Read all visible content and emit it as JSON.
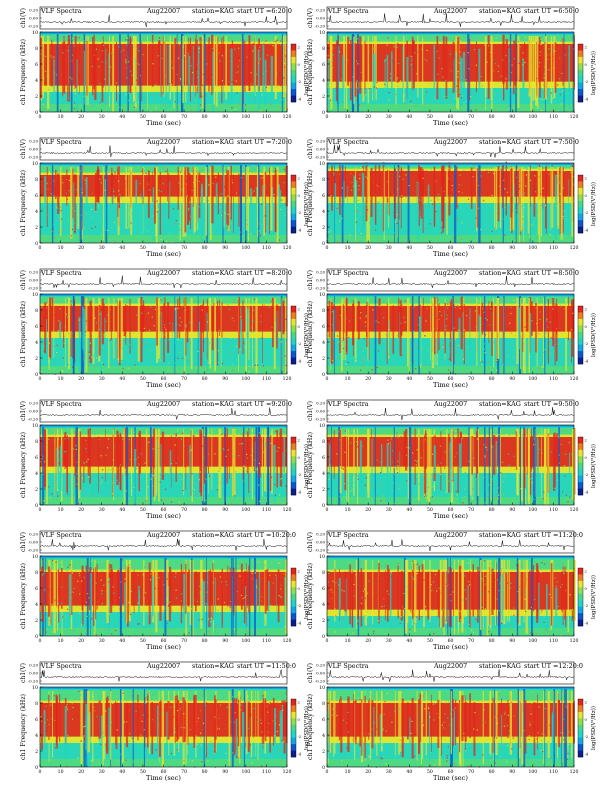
{
  "page": {
    "ts_ylabel": "ch1(V)",
    "spec_ylabel": "ch1 Frequency (kHz)",
    "xlabel": "Time (sec)",
    "colorbar_label": "log(PSD(V²/Hz))"
  },
  "colorscale": [
    "#0b1f8f",
    "#0a58d0",
    "#11a7e6",
    "#1ed6c4",
    "#46d98a",
    "#8fdf4a",
    "#e7e52e",
    "#f07d1c",
    "#e2261c"
  ],
  "chart_data": [
    {
      "type": "heatmap",
      "title_left": "VLF Spectra",
      "date": "Aug22007",
      "station": "station=KAG",
      "start": "start UT =6:20:0",
      "ts_ticks": [
        "0.20",
        "0.00",
        "-0.20"
      ],
      "ts_ylim": [
        -0.2,
        0.2
      ],
      "x_ticks": [
        0,
        10,
        20,
        30,
        40,
        50,
        60,
        70,
        80,
        90,
        100,
        110,
        120
      ],
      "xlim": [
        0,
        120
      ],
      "y_ticks": [
        0,
        2,
        4,
        6,
        8,
        10
      ],
      "ylim": [
        0,
        10
      ],
      "cb_ticks": [
        "2",
        "0",
        "-2",
        "-4"
      ],
      "xlabel": "Time (sec)",
      "ylabel": "ch1 Frequency (kHz)",
      "zlabel": "log(PSD(V²/Hz))",
      "band_low": 2.5,
      "band_high": 8.5,
      "intensity": 0.55
    },
    {
      "type": "heatmap",
      "title_left": "VLF Spectra",
      "date": "Aug22007",
      "station": "station=KAG",
      "start": "start UT =6:50:0",
      "ts_ticks": [
        "0.20",
        "0.00",
        "-0.20"
      ],
      "ts_ylim": [
        -0.2,
        0.2
      ],
      "x_ticks": [
        0,
        10,
        20,
        30,
        40,
        50,
        60,
        70,
        80,
        90,
        100,
        110,
        120
      ],
      "xlim": [
        0,
        120
      ],
      "y_ticks": [
        0,
        2,
        4,
        6,
        8,
        10
      ],
      "ylim": [
        0,
        10
      ],
      "cb_ticks": [
        "2",
        "0",
        "-2",
        "-4"
      ],
      "xlabel": "Time (sec)",
      "ylabel": "ch1 Frequency (kHz)",
      "zlabel": "log(PSD(V²/Hz))",
      "band_low": 3.0,
      "band_high": 8.5,
      "intensity": 0.5
    },
    {
      "type": "heatmap",
      "title_left": "VLF Spectra",
      "date": "Aug22007",
      "station": "station=KAG",
      "start": "start UT =7:20:0",
      "ts_ticks": [
        "0.20",
        "0.00",
        "-0.20"
      ],
      "ts_ylim": [
        -0.2,
        0.2
      ],
      "x_ticks": [
        0,
        10,
        20,
        30,
        40,
        50,
        60,
        70,
        80,
        90,
        100,
        110,
        120
      ],
      "xlim": [
        0,
        120
      ],
      "y_ticks": [
        0,
        2,
        4,
        6,
        8,
        10
      ],
      "ylim": [
        0,
        10
      ],
      "cb_ticks": [
        "2",
        "0",
        "-2",
        "-4"
      ],
      "xlabel": "Time (sec)",
      "ylabel": "ch1 Frequency (kHz)",
      "zlabel": "log(PSD(V²/Hz))",
      "band_low": 5.0,
      "band_high": 8.5,
      "intensity": 0.55
    },
    {
      "type": "heatmap",
      "title_left": "VLF Spectra",
      "date": "Aug22007",
      "station": "station=KAG",
      "start": "start UT =7:50:0",
      "ts_ticks": [
        "0.20",
        "0.00",
        "-0.20"
      ],
      "ts_ylim": [
        -0.2,
        0.2
      ],
      "x_ticks": [
        0,
        10,
        20,
        30,
        40,
        50,
        60,
        70,
        80,
        90,
        100,
        110,
        120
      ],
      "xlim": [
        0,
        120
      ],
      "y_ticks": [
        0,
        2,
        4,
        6,
        8,
        10
      ],
      "ylim": [
        0,
        10
      ],
      "cb_ticks": [
        "2",
        "0",
        "-2",
        "-4"
      ],
      "xlabel": "Time (sec)",
      "ylabel": "ch1 Frequency (kHz)",
      "zlabel": "log(PSD(V²/Hz))",
      "band_low": 5.0,
      "band_high": 9.0,
      "intensity": 0.7
    },
    {
      "type": "heatmap",
      "title_left": "VLF Spectra",
      "date": "Aug22007",
      "station": "station=KAG",
      "start": "start UT =8:20:0",
      "ts_ticks": [
        "0.20",
        "0.00",
        "-0.20"
      ],
      "ts_ylim": [
        -0.2,
        0.2
      ],
      "x_ticks": [
        0,
        10,
        20,
        30,
        40,
        50,
        60,
        70,
        80,
        90,
        100,
        110,
        120
      ],
      "xlim": [
        0,
        120
      ],
      "y_ticks": [
        0,
        2,
        4,
        6,
        8,
        10
      ],
      "ylim": [
        0,
        10
      ],
      "cb_ticks": [
        "2",
        "0",
        "-2",
        "-4"
      ],
      "xlabel": "Time (sec)",
      "ylabel": "ch1 Frequency (kHz)",
      "zlabel": "log(PSD(V²/Hz))",
      "band_low": 4.5,
      "band_high": 8.5,
      "intensity": 0.7
    },
    {
      "type": "heatmap",
      "title_left": "VLF Spectra",
      "date": "Aug22007",
      "station": "station=KAG",
      "start": "start UT =8:50:0",
      "ts_ticks": [
        "0.20",
        "0.00",
        "-0.20"
      ],
      "ts_ylim": [
        -0.2,
        0.2
      ],
      "x_ticks": [
        0,
        10,
        20,
        30,
        40,
        50,
        60,
        70,
        80,
        90,
        100,
        110,
        120
      ],
      "xlim": [
        0,
        120
      ],
      "y_ticks": [
        0,
        2,
        4,
        6,
        8,
        10
      ],
      "ylim": [
        0,
        10
      ],
      "cb_ticks": [
        "2",
        "0",
        "-2",
        "-4"
      ],
      "xlabel": "Time (sec)",
      "ylabel": "ch1 Frequency (kHz)",
      "zlabel": "log(PSD(V²/Hz))",
      "band_low": 4.5,
      "band_high": 8.5,
      "intensity": 0.7
    },
    {
      "type": "heatmap",
      "title_left": "VLF Spectra",
      "date": "Aug22007",
      "station": "station=KAG",
      "start": "start UT =9:20:0",
      "ts_ticks": [
        "0.20",
        "0.00",
        "-0.20"
      ],
      "ts_ylim": [
        -0.2,
        0.2
      ],
      "x_ticks": [
        0,
        10,
        20,
        30,
        40,
        50,
        60,
        70,
        80,
        90,
        100,
        110,
        120
      ],
      "xlim": [
        0,
        120
      ],
      "y_ticks": [
        0,
        2,
        4,
        6,
        8,
        10
      ],
      "ylim": [
        0,
        10
      ],
      "cb_ticks": [
        "2",
        "0",
        "-2",
        "-4"
      ],
      "xlabel": "Time (sec)",
      "ylabel": "ch1 Frequency (kHz)",
      "zlabel": "log(PSD(V²/Hz))",
      "band_low": 4.0,
      "band_high": 8.5,
      "intensity": 0.8
    },
    {
      "type": "heatmap",
      "title_left": "VLF Spectra",
      "date": "Aug22007",
      "station": "station=KAG",
      "start": "start UT =9:50:0",
      "ts_ticks": [
        "0.20",
        "0.00",
        "-0.20"
      ],
      "ts_ylim": [
        -0.2,
        0.2
      ],
      "x_ticks": [
        0,
        10,
        20,
        30,
        40,
        50,
        60,
        70,
        80,
        90,
        100,
        110,
        120
      ],
      "xlim": [
        0,
        120
      ],
      "y_ticks": [
        0,
        2,
        4,
        6,
        8,
        10
      ],
      "ylim": [
        0,
        10
      ],
      "cb_ticks": [
        "2",
        "0",
        "-2",
        "-4"
      ],
      "xlabel": "Time (sec)",
      "ylabel": "ch1 Frequency (kHz)",
      "zlabel": "log(PSD(V²/Hz))",
      "band_low": 4.0,
      "band_high": 8.5,
      "intensity": 0.8
    },
    {
      "type": "heatmap",
      "title_left": "VLF Spectra",
      "date": "Aug22007",
      "station": "station=KAG",
      "start": "start UT =10:20:0",
      "ts_ticks": [
        "0.20",
        "0.00",
        "-0.20"
      ],
      "ts_ylim": [
        -0.2,
        0.2
      ],
      "x_ticks": [
        0,
        10,
        20,
        30,
        40,
        50,
        60,
        70,
        80,
        90,
        100,
        110,
        120
      ],
      "xlim": [
        0,
        120
      ],
      "y_ticks": [
        0,
        2,
        4,
        6,
        8,
        10
      ],
      "ylim": [
        0,
        10
      ],
      "cb_ticks": [
        "2",
        "0",
        "-2",
        "-4"
      ],
      "xlabel": "Time (sec)",
      "ylabel": "ch1 Frequency (kHz)",
      "zlabel": "log(PSD(V²/Hz))",
      "band_low": 3.0,
      "band_high": 8.0,
      "intensity": 0.75
    },
    {
      "type": "heatmap",
      "title_left": "VLF Spectra",
      "date": "Aug22007",
      "station": "station=KAG",
      "start": "start UT =11:20:0",
      "ts_ticks": [
        "0.20",
        "0.00",
        "-0.20"
      ],
      "ts_ylim": [
        -0.2,
        0.2
      ],
      "x_ticks": [
        0,
        10,
        20,
        30,
        40,
        50,
        60,
        70,
        80,
        90,
        100,
        110,
        120
      ],
      "xlim": [
        0,
        120
      ],
      "y_ticks": [
        0,
        2,
        4,
        6,
        8,
        10
      ],
      "ylim": [
        0,
        10
      ],
      "cb_ticks": [
        "2",
        "0",
        "-2",
        "-4"
      ],
      "xlabel": "Time (sec)",
      "ylabel": "ch1 Frequency (kHz)",
      "zlabel": "log(PSD(V²/Hz))",
      "band_low": 2.5,
      "band_high": 8.0,
      "intensity": 0.75
    },
    {
      "type": "heatmap",
      "title_left": "VLF Spectra",
      "date": "Aug22007",
      "station": "station=KAG",
      "start": "start UT =11:50:0",
      "ts_ticks": [
        "0.20",
        "0.00",
        "-0.20"
      ],
      "ts_ylim": [
        -0.2,
        0.2
      ],
      "x_ticks": [
        0,
        10,
        20,
        30,
        40,
        50,
        60,
        70,
        80,
        90,
        100,
        110,
        120
      ],
      "xlim": [
        0,
        120
      ],
      "y_ticks": [
        0,
        2,
        4,
        6,
        8,
        10
      ],
      "ylim": [
        0,
        10
      ],
      "cb_ticks": [
        "2",
        "0",
        "-2",
        "-4"
      ],
      "xlabel": "Time (sec)",
      "ylabel": "ch1 Frequency (kHz)",
      "zlabel": "log(PSD(V²/Hz))",
      "band_low": 3.0,
      "band_high": 8.0,
      "intensity": 0.55
    },
    {
      "type": "heatmap",
      "title_left": "VLF Spectra",
      "date": "Aug22007",
      "station": "station=KAG",
      "start": "start UT =12:20:0",
      "ts_ticks": [
        "0.20",
        "0.00",
        "-0.20"
      ],
      "ts_ylim": [
        -0.2,
        0.2
      ],
      "x_ticks": [
        0,
        10,
        20,
        30,
        40,
        50,
        60,
        70,
        80,
        90,
        100,
        110,
        120
      ],
      "xlim": [
        0,
        120
      ],
      "y_ticks": [
        0,
        2,
        4,
        6,
        8,
        10
      ],
      "ylim": [
        0,
        10
      ],
      "cb_ticks": [
        "2",
        "0",
        "-2",
        "-4"
      ],
      "xlabel": "Time (sec)",
      "ylabel": "ch1 Frequency (kHz)",
      "zlabel": "log(PSD(V²/Hz))",
      "band_low": 3.0,
      "band_high": 8.0,
      "intensity": 0.55
    }
  ]
}
